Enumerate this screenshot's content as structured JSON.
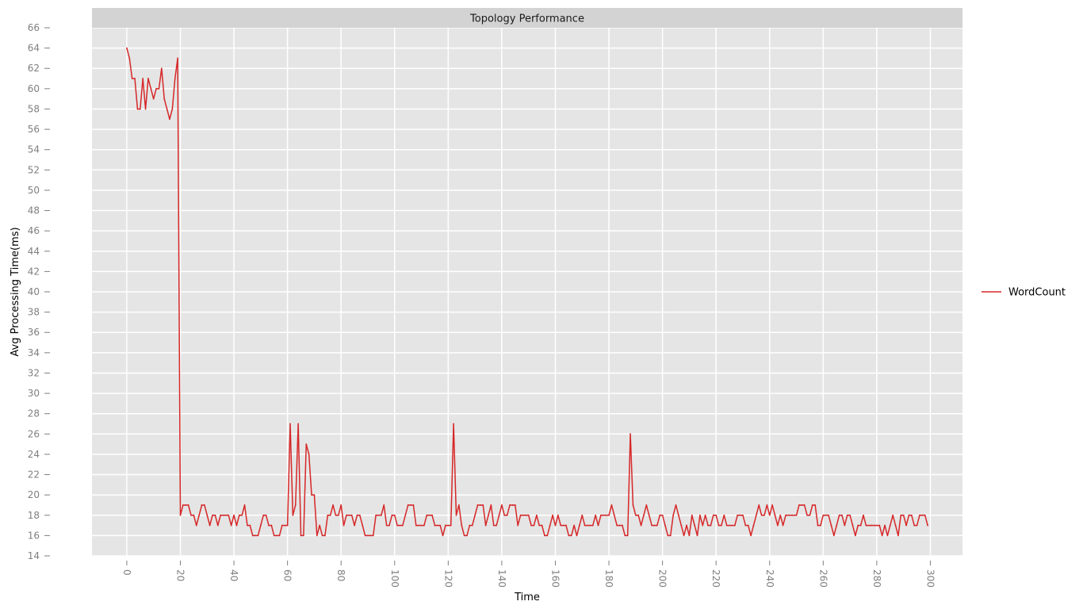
{
  "chart_data": {
    "type": "line",
    "title": "Topology Performance",
    "xlabel": "Time",
    "ylabel": "Avg Processing Time(ms)",
    "xlim": [
      -13,
      312
    ],
    "ylim": [
      14,
      66
    ],
    "x_ticks": [
      0,
      20,
      40,
      60,
      80,
      100,
      120,
      140,
      160,
      180,
      200,
      220,
      240,
      260,
      280,
      300
    ],
    "y_ticks": [
      14,
      16,
      18,
      20,
      22,
      24,
      26,
      28,
      30,
      32,
      34,
      36,
      38,
      40,
      42,
      44,
      46,
      48,
      50,
      52,
      54,
      56,
      58,
      60,
      62,
      64,
      66
    ],
    "grid": true,
    "legend_position": "right",
    "series": [
      {
        "name": "WordCount",
        "color": "#d62728",
        "values": [
          64,
          63,
          61,
          61,
          58,
          58,
          61,
          58,
          61,
          60,
          59,
          60,
          60,
          62,
          59,
          58,
          57,
          58,
          61,
          63,
          18,
          19,
          19,
          19,
          18,
          18,
          17,
          18,
          19,
          19,
          18,
          17,
          18,
          18,
          17,
          18,
          18,
          18,
          18,
          17,
          18,
          17,
          18,
          18,
          19,
          17,
          17,
          16,
          16,
          16,
          17,
          18,
          18,
          17,
          17,
          16,
          16,
          16,
          17,
          17,
          17,
          27,
          18,
          19,
          27,
          16,
          16,
          25,
          24,
          20,
          20,
          16,
          17,
          16,
          16,
          18,
          18,
          19,
          18,
          18,
          19,
          17,
          18,
          18,
          18,
          17,
          18,
          18,
          17,
          16,
          16,
          16,
          16,
          18,
          18,
          18,
          19,
          17,
          17,
          18,
          18,
          17,
          17,
          17,
          18,
          19,
          19,
          19,
          17,
          17,
          17,
          17,
          18,
          18,
          18,
          17,
          17,
          17,
          16,
          17,
          17,
          17,
          27,
          18,
          19,
          17,
          16,
          16,
          17,
          17,
          18,
          19,
          19,
          19,
          17,
          18,
          19,
          17,
          17,
          18,
          19,
          18,
          18,
          19,
          19,
          19,
          17,
          18,
          18,
          18,
          18,
          17,
          17,
          18,
          17,
          17,
          16,
          16,
          17,
          18,
          17,
          18,
          17,
          17,
          17,
          16,
          16,
          17,
          16,
          17,
          18,
          17,
          17,
          17,
          17,
          18,
          17,
          18,
          18,
          18,
          18,
          19,
          18,
          17,
          17,
          17,
          16,
          16,
          26,
          19,
          18,
          18,
          17,
          18,
          19,
          18,
          17,
          17,
          17,
          18,
          18,
          17,
          16,
          16,
          18,
          19,
          18,
          17,
          16,
          17,
          16,
          18,
          17,
          16,
          18,
          17,
          18,
          17,
          17,
          18,
          18,
          17,
          17,
          18,
          17,
          17,
          17,
          17,
          18,
          18,
          18,
          17,
          17,
          16,
          17,
          18,
          19,
          18,
          18,
          19,
          18,
          19,
          18,
          17,
          18,
          17,
          18,
          18,
          18,
          18,
          18,
          19,
          19,
          19,
          18,
          18,
          19,
          19,
          17,
          17,
          18,
          18,
          18,
          17,
          16,
          17,
          18,
          18,
          17,
          18,
          18,
          17,
          16,
          17,
          17,
          18,
          17,
          17,
          17,
          17,
          17,
          17,
          16,
          17,
          16,
          17,
          18,
          17,
          16,
          18,
          18,
          17,
          18,
          18,
          17,
          17,
          18,
          18,
          18,
          17
        ]
      }
    ]
  }
}
